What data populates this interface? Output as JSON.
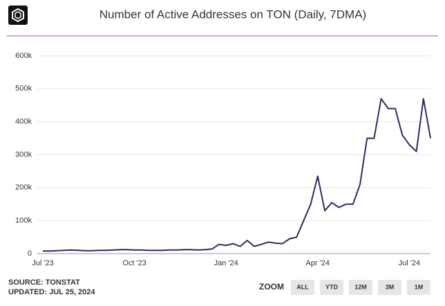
{
  "chart_data": {
    "type": "line",
    "title": "Number of Active Addresses on TON (Daily, 7DMA)",
    "categories": [
      "Jul '23",
      null,
      null,
      null,
      null,
      null,
      null,
      null,
      null,
      null,
      null,
      null,
      null,
      "Oct '23",
      null,
      null,
      null,
      null,
      null,
      null,
      null,
      null,
      null,
      null,
      null,
      null,
      "Jan '24",
      null,
      null,
      null,
      null,
      null,
      null,
      null,
      null,
      null,
      null,
      null,
      null,
      "Apr '24",
      null,
      null,
      null,
      null,
      null,
      null,
      null,
      null,
      null,
      null,
      null,
      null,
      "Jul '24",
      null,
      null,
      null
    ],
    "series": [
      {
        "name": "Active Addresses",
        "color": "#2e2a5c",
        "values": [
          8000,
          8000,
          9000,
          10000,
          11000,
          10000,
          9000,
          9000,
          10000,
          10000,
          11000,
          12000,
          12000,
          11000,
          11000,
          10000,
          10000,
          10000,
          11000,
          11000,
          12000,
          12000,
          11000,
          12000,
          14000,
          28000,
          25000,
          30000,
          22000,
          40000,
          22000,
          28000,
          35000,
          32000,
          30000,
          45000,
          50000,
          100000,
          150000,
          235000,
          130000,
          155000,
          140000,
          150000,
          150000,
          210000,
          350000,
          350000,
          470000,
          440000,
          440000,
          360000,
          330000,
          310000,
          470000,
          350000
        ]
      }
    ],
    "ylim": [
      0,
      600000
    ],
    "yticks": [
      0,
      {
        "value": 100000,
        "label": "100k"
      },
      {
        "value": 200000,
        "label": "200k"
      },
      {
        "value": 300000,
        "label": "300k"
      },
      {
        "value": 400000,
        "label": "400k"
      },
      {
        "value": 500000,
        "label": "500k"
      },
      {
        "value": 600000,
        "label": "600k"
      }
    ],
    "source": "SOURCE: TONSTAT",
    "updated": "UPDATED: JUL 25, 2024",
    "zoom_label": "ZOOM",
    "zoom_buttons": [
      "ALL",
      "YTD",
      "12M",
      "3M",
      "1M"
    ]
  }
}
